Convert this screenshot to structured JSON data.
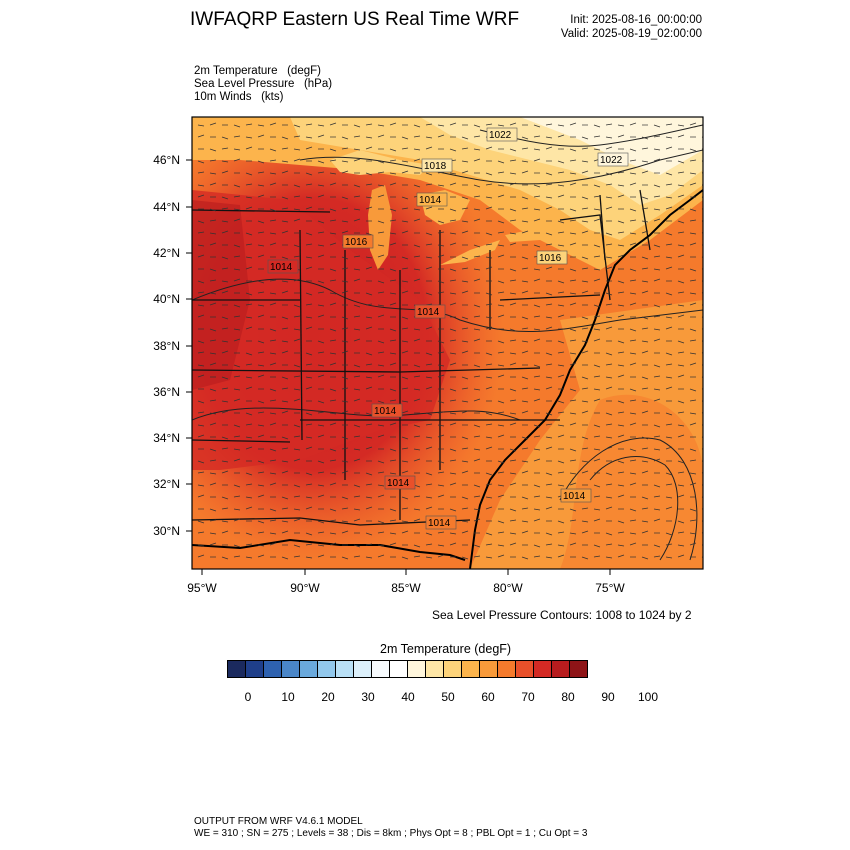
{
  "title": "IWFAQRP Eastern US Real Time WRF",
  "run": {
    "init": "Init: 2025-08-16_00:00:00",
    "valid": "Valid: 2025-08-19_02:00:00"
  },
  "variables": [
    "2m Temperature   (degF)",
    "Sea Level Pressure   (hPa)",
    "10m Winds   (kts)"
  ],
  "map": {
    "lat_labels": [
      "46°N",
      "44°N",
      "42°N",
      "40°N",
      "38°N",
      "36°N",
      "34°N",
      "32°N",
      "30°N"
    ],
    "lon_labels": [
      "95°W",
      "90°W",
      "85°W",
      "80°W",
      "75°W"
    ],
    "pressure_labels": [
      "1022",
      "1018",
      "1022",
      "1014",
      "1016",
      "1016",
      "1014",
      "1014",
      "1014",
      "1014",
      "1014",
      "1014"
    ]
  },
  "contour_note": "Sea Level Pressure Contours: 1008 to 1024 by 2",
  "colorbar": {
    "title": "2m Temperature   (degF)",
    "tick_labels": [
      "0",
      "10",
      "20",
      "30",
      "40",
      "50",
      "60",
      "70",
      "80",
      "90",
      "100"
    ],
    "colors": [
      "#1b2a5e",
      "#1f3f8a",
      "#2e62b0",
      "#4a86c8",
      "#6aa9dc",
      "#92c8ec",
      "#b9e0f6",
      "#dcf0fb",
      "#f7fbfe",
      "#ffffff",
      "#fff6dc",
      "#fee6a6",
      "#fdd37a",
      "#fcb44c",
      "#f89a3a",
      "#f57a2c",
      "#e9502a",
      "#d42a24",
      "#b71c1e",
      "#8e1417"
    ]
  },
  "footer": {
    "line1": "OUTPUT FROM WRF V4.6.1 MODEL",
    "line2": "WE = 310 ; SN = 275 ; Levels = 38 ; Dis = 8km ; Phys Opt = 8 ; PBL Opt = 1 ; Cu Opt = 3"
  }
}
